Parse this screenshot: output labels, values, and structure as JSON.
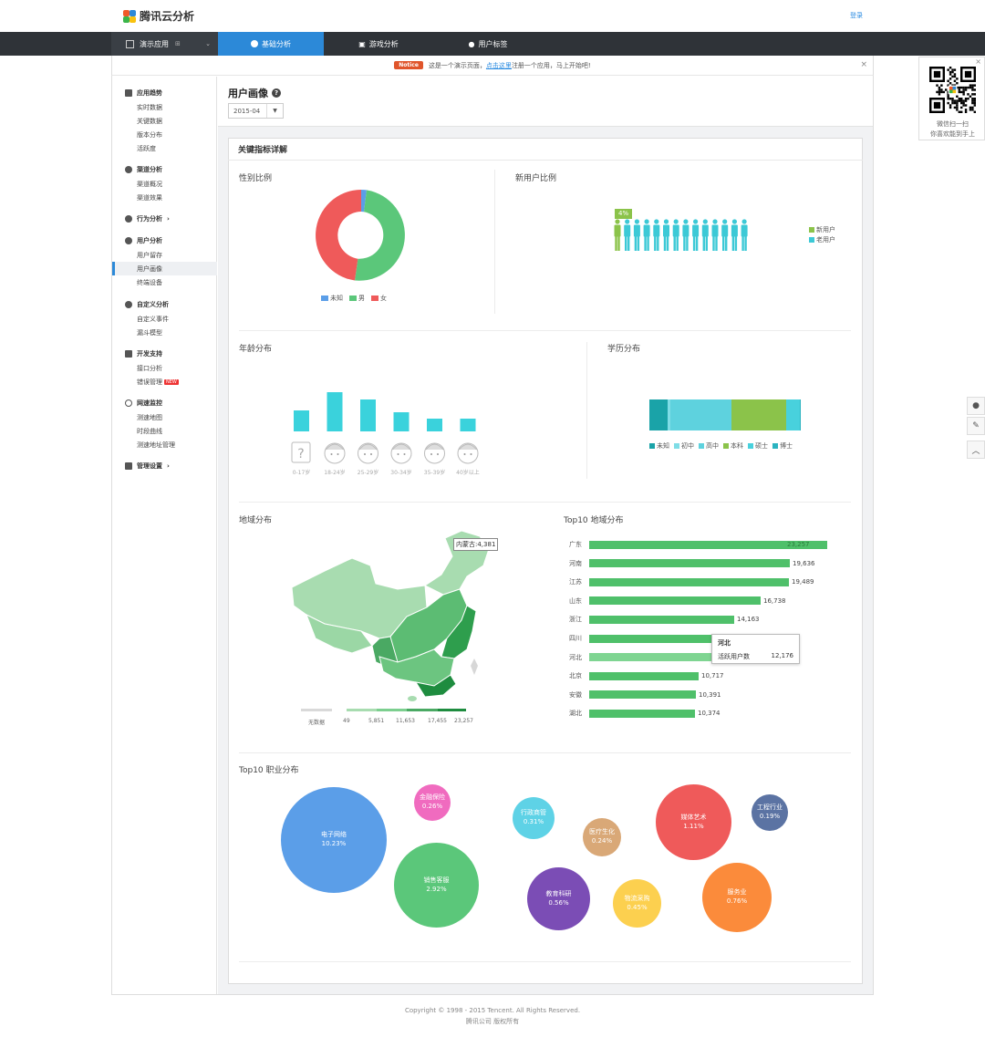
{
  "header": {
    "brand": "腾讯云分析",
    "login": "登录"
  },
  "nav": {
    "app_selector": "演示应用",
    "tabs": [
      {
        "label": "基础分析",
        "active": true
      },
      {
        "label": "游戏分析",
        "active": false
      },
      {
        "label": "用户标签",
        "active": false
      }
    ]
  },
  "notice": {
    "badge": "Notice",
    "text_before": "这是一个演示页面，",
    "link": "点击这里",
    "text_after": "注册一个应用，马上开始吧!"
  },
  "sidebar": {
    "groups": [
      {
        "title": "应用趋势",
        "items": [
          "实时数据",
          "关键数据",
          "版本分布",
          "活跃度"
        ]
      },
      {
        "title": "渠道分析",
        "items": [
          "渠道概况",
          "渠道效果"
        ]
      },
      {
        "title": "行为分析",
        "items": []
      },
      {
        "title": "用户分析",
        "items": [
          "用户留存",
          "用户画像",
          "终端设备"
        ]
      },
      {
        "title": "自定义分析",
        "items": [
          "自定义事件",
          "漏斗模型"
        ]
      },
      {
        "title": "开发支持",
        "items": [
          "接口分析",
          "错误管理"
        ]
      },
      {
        "title": "网速监控",
        "items": [
          "测速地图",
          "时段曲线",
          "测速地址管理"
        ]
      },
      {
        "title": "管理设置",
        "items": []
      }
    ],
    "active_item": "用户画像",
    "new_badge": "NEW"
  },
  "page": {
    "title": "用户画像",
    "date": "2015-04"
  },
  "card": {
    "title": "关键指标详解"
  },
  "gender": {
    "title": "性别比例",
    "legend": [
      {
        "label": "未知",
        "color": "#5b9ee8"
      },
      {
        "label": "男",
        "color": "#5bc77a"
      },
      {
        "label": "女",
        "color": "#ef5a5a"
      }
    ]
  },
  "new_user": {
    "title": "新用户比例",
    "percent_label": "4%",
    "legend": [
      {
        "label": "新用户",
        "color": "#8bc34a"
      },
      {
        "label": "老用户",
        "color": "#3cc9d6"
      }
    ]
  },
  "age": {
    "title": "年龄分布",
    "labels": [
      "0-17岁",
      "18-24岁",
      "25-29岁",
      "30-34岁",
      "35-39岁",
      "40岁以上"
    ]
  },
  "education": {
    "title": "学历分布",
    "legend": [
      {
        "label": "未知",
        "color": "#1aa3a8"
      },
      {
        "label": "初中",
        "color": "#7fdde6"
      },
      {
        "label": "高中",
        "color": "#5ed2de"
      },
      {
        "label": "本科",
        "color": "#8bc34a"
      },
      {
        "label": "硕士",
        "color": "#48d1dd"
      },
      {
        "label": "博士",
        "color": "#2bb3c0"
      }
    ]
  },
  "region_map": {
    "title": "地域分布",
    "tooltip": "内蒙古:4,381",
    "scale_labels": [
      "无数据",
      "49",
      "5,851",
      "11,653",
      "17,455",
      "23,257"
    ]
  },
  "top10_region": {
    "title": "Top10 地域分布",
    "tooltip": {
      "name": "河北",
      "metric": "活跃用户数",
      "value": "12,176"
    },
    "rows": [
      {
        "name": "广东",
        "value": "23,257"
      },
      {
        "name": "河南",
        "value": "19,636"
      },
      {
        "name": "江苏",
        "value": "19,489"
      },
      {
        "name": "山东",
        "value": "16,738"
      },
      {
        "name": "浙江",
        "value": "14,163"
      },
      {
        "name": "四川",
        "value": "12,577"
      },
      {
        "name": "河北",
        "value": "12,176"
      },
      {
        "name": "北京",
        "value": "10,717"
      },
      {
        "name": "安徽",
        "value": "10,391"
      },
      {
        "name": "湖北",
        "value": "10,374"
      }
    ]
  },
  "occupation": {
    "title": "Top10 职业分布",
    "bubbles": [
      {
        "name": "电子网络",
        "value": "10.23%",
        "color": "#5b9ee8"
      },
      {
        "name": "金融保险",
        "value": "0.26%",
        "color": "#f06bbf"
      },
      {
        "name": "销售客服",
        "value": "2.92%",
        "color": "#5bc77a"
      },
      {
        "name": "行政商管",
        "value": "0.31%",
        "color": "#5ed2e6"
      },
      {
        "name": "医疗生化",
        "value": "0.24%",
        "color": "#d9a877"
      },
      {
        "name": "教育科研",
        "value": "0.56%",
        "color": "#7b4db5"
      },
      {
        "name": "物流采购",
        "value": "0.45%",
        "color": "#fcd04f"
      },
      {
        "name": "媒体艺术",
        "value": "1.11%",
        "color": "#ef5a5a"
      },
      {
        "name": "工程行业",
        "value": "0.19%",
        "color": "#5b73a3"
      },
      {
        "name": "服务业",
        "value": "0.76%",
        "color": "#fb8b3b"
      }
    ]
  },
  "qr": {
    "line1": "微信扫一扫",
    "line2": "你喜欢能到手上"
  },
  "footer": {
    "line1": "Copyright © 1998 - 2015 Tencent. All Rights Reserved.",
    "line2": "腾讯公司 版权所有"
  }
}
